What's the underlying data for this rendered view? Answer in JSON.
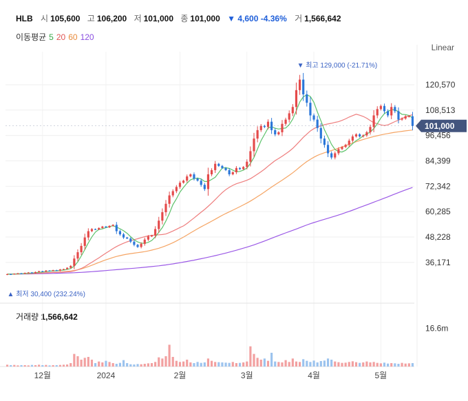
{
  "header": {
    "symbol": "HLB",
    "open_label": "시",
    "open": "105,600",
    "high_label": "고",
    "high": "106,200",
    "low_label": "저",
    "low": "101,000",
    "close_label": "종",
    "close": "101,000",
    "change": "▼ 4,600 -4.36%",
    "volume_label": "거",
    "volume": "1,566,642"
  },
  "ma_legend": {
    "label": "이동평균",
    "p5": "5",
    "p20": "20",
    "p60": "60",
    "p120": "120"
  },
  "scale_button": "Linear",
  "volume_panel": {
    "title": "거래량",
    "value": "1,566,642",
    "axis_label": "16.6m"
  },
  "colors": {
    "up": "#e44a4a",
    "down": "#2b77d9",
    "ma5": "#5cc26a",
    "ma20": "#ee7d7d",
    "ma60": "#f5a463",
    "ma120": "#9b59e6",
    "price_tag": "#43557e"
  },
  "chart_data": {
    "type": "candlestick",
    "price_ticks": [
      36171,
      48228,
      60285,
      72342,
      84399,
      96456,
      108513,
      120570
    ],
    "price_tick_labels": [
      "36,171",
      "48,228",
      "60,285",
      "72,342",
      "84,399",
      "96,456",
      "108,513",
      "120,570"
    ],
    "ylim": [
      24000,
      133000
    ],
    "x_labels": [
      "12월",
      "2024",
      "2월",
      "3월",
      "4월",
      "5월"
    ],
    "x_label_index": [
      10,
      28,
      49,
      68,
      87,
      106
    ],
    "current_price": 101000,
    "current_price_label": "101,000",
    "max_annotation": "최고 129,000 (-21.71%)",
    "min_annotation": "최저 30,400 (232.24%)",
    "max_index": 83,
    "min_index": 0,
    "closes": [
      30600,
      30500,
      30800,
      31000,
      30900,
      31200,
      31400,
      31100,
      31600,
      32000,
      31800,
      32300,
      32100,
      32500,
      32200,
      32800,
      33000,
      33600,
      34500,
      38000,
      41000,
      44000,
      48000,
      51000,
      52000,
      51800,
      52500,
      53200,
      52800,
      53500,
      54000,
      51000,
      49500,
      48000,
      47500,
      46000,
      44500,
      43500,
      45000,
      47000,
      48500,
      49000,
      52000,
      56000,
      60000,
      64000,
      68000,
      70000,
      72000,
      74000,
      75000,
      77000,
      78000,
      76000,
      75000,
      73000,
      71000,
      78000,
      80000,
      83000,
      82000,
      81000,
      80000,
      78000,
      79000,
      81000,
      80500,
      81500,
      84000,
      89000,
      95000,
      99000,
      101000,
      100500,
      103000,
      99000,
      97000,
      98000,
      102000,
      104000,
      107000,
      110000,
      118000,
      123000,
      116000,
      112000,
      106000,
      104000,
      100000,
      95000,
      92000,
      88000,
      86000,
      88000,
      90000,
      91000,
      92000,
      94000,
      96000,
      97000,
      96000,
      96500,
      98000,
      100500,
      106000,
      109000,
      110500,
      108000,
      106000,
      110000,
      108000,
      104000,
      104500,
      105600,
      105600,
      101000
    ],
    "ma5": [
      30600,
      30550,
      30633,
      30725,
      30760,
      30880,
      30960,
      31120,
      31240,
      31460,
      31580,
      31760,
      31960,
      32140,
      32180,
      32380,
      32520,
      32820,
      33220,
      34380,
      36400,
      39220,
      42220,
      45400,
      48300,
      50560,
      51820,
      52100,
      52660,
      53160,
      53600,
      52900,
      52160,
      51200,
      50000,
      48400,
      46900,
      45900,
      45300,
      45200,
      45700,
      46600,
      48300,
      50500,
      52700,
      55800,
      59400,
      63600,
      66400,
      69600,
      71800,
      73800,
      75400,
      76000,
      76200,
      75800,
      74600,
      74600,
      75600,
      76600,
      78800,
      81000,
      81200,
      80800,
      80000,
      79200,
      79400,
      80000,
      81000,
      83200,
      86000,
      90000,
      94000,
      97000,
      100000,
      100600,
      99900,
      99500,
      99800,
      100000,
      101600,
      104200,
      108200,
      112400,
      114800,
      115800,
      115000,
      112200,
      107600,
      103400,
      99200,
      95800,
      92200,
      89800,
      88800,
      88600,
      89400,
      91000,
      92600,
      94000,
      95000,
      96300,
      97200,
      98100,
      99700,
      102000,
      104800,
      106800,
      107900,
      108700,
      108700,
      107700,
      106500,
      106400,
      106000,
      104800
    ],
    "ma20": [
      30600,
      30550,
      30633,
      30725,
      30760,
      30833,
      30914,
      30938,
      31000,
      31100,
      31164,
      31250,
      31315,
      31386,
      31427,
      31500,
      31576,
      31678,
      31805,
      32115,
      32635,
      33295,
      34155,
      35180,
      36245,
      37275,
      38340,
      39450,
      40560,
      41640,
      42755,
      43690,
      44525,
      45245,
      45935,
      46495,
      46970,
      47395,
      47920,
      48370,
      48755,
      49005,
      49180,
      49280,
      49405,
      49655,
      50330,
      51080,
      51885,
      52725,
      53500,
      54650,
      55975,
      57300,
      58650,
      60000,
      61325,
      62800,
      64350,
      66000,
      67700,
      69300,
      70725,
      71825,
      72775,
      73525,
      74050,
      74600,
      75200,
      75950,
      77000,
      78100,
      79250,
      80475,
      81875,
      83225,
      84525,
      85525,
      86625,
      87750,
      88950,
      90325,
      92025,
      93775,
      95575,
      97100,
      98600,
      99725,
      100525,
      101050,
      101575,
      101925,
      102250,
      102675,
      103025,
      103625,
      104375,
      105200,
      105900,
      106550,
      106100,
      105500,
      104650,
      103525,
      102525,
      102025,
      101500,
      101200,
      101500,
      102250,
      103050,
      103750,
      104600,
      105250,
      105825,
      106325
    ],
    "ma60": [
      30600,
      30600,
      30630,
      30670,
      30710,
      30760,
      30820,
      30880,
      30950,
      31030,
      31110,
      31200,
      31300,
      31400,
      31510,
      31620,
      31740,
      31880,
      32050,
      32310,
      32650,
      33070,
      33590,
      34180,
      34830,
      35480,
      36140,
      36790,
      37390,
      37960,
      38500,
      38980,
      39400,
      39760,
      40070,
      40340,
      40570,
      40780,
      41010,
      41290,
      41620,
      41990,
      42420,
      42900,
      43440,
      44050,
      44740,
      45500,
      46350,
      47260,
      48200,
      49180,
      50190,
      51180,
      52140,
      53060,
      53940,
      54830,
      55740,
      56670,
      57610,
      58520,
      59390,
      60200,
      61000,
      61810,
      62620,
      63460,
      64350,
      65300,
      66320,
      67390,
      68500,
      69620,
      70800,
      71950,
      73060,
      74140,
      75240,
      76360,
      77520,
      78740,
      80080,
      81490,
      82820,
      84060,
      85150,
      86130,
      86970,
      87660,
      88260,
      88790,
      89300,
      89850,
      90420,
      91010,
      91630,
      92270,
      92900,
      93500,
      94060,
      94580,
      95060,
      95510,
      95940,
      96350,
      96730,
      97080,
      97390,
      97690,
      97970,
      98220,
      98450,
      98670,
      98870,
      99050
    ],
    "ma120": [
      30600,
      30580,
      30590,
      30610,
      30630,
      30660,
      30690,
      30720,
      30750,
      30790,
      30830,
      30870,
      30910,
      30950,
      30990,
      31040,
      31090,
      31140,
      31200,
      31270,
      31350,
      31440,
      31540,
      31650,
      31770,
      31900,
      32030,
      32160,
      32290,
      32430,
      32570,
      32710,
      32850,
      32990,
      33130,
      33270,
      33410,
      33550,
      33700,
      33850,
      34010,
      34180,
      34360,
      34550,
      34760,
      34980,
      35220,
      35470,
      35740,
      36020,
      36310,
      36610,
      36920,
      37240,
      37570,
      37910,
      38260,
      38620,
      38990,
      39370,
      39770,
      40180,
      40600,
      41040,
      41490,
      41950,
      42420,
      42910,
      43420,
      43950,
      44500,
      45080,
      45690,
      46320,
      46970,
      47630,
      48290,
      48940,
      49570,
      50180,
      50780,
      51390,
      52020,
      52680,
      53330,
      53950,
      54540,
      55100,
      55630,
      56140,
      56640,
      57140,
      57640,
      58150,
      58680,
      59230,
      59800,
      60390,
      61000,
      61620,
      62250,
      62880,
      63510,
      64140,
      64770,
      65400,
      66030,
      66670,
      67320,
      67980,
      68640,
      69300,
      69950,
      70580,
      71190,
      71770
    ],
    "volumes_m": [
      0.8,
      0.6,
      0.7,
      0.5,
      0.6,
      0.6,
      0.5,
      0.7,
      0.6,
      0.8,
      0.6,
      0.7,
      0.5,
      0.6,
      0.6,
      0.7,
      0.8,
      0.9,
      1.5,
      5.5,
      4.5,
      3.0,
      3.8,
      4.2,
      3.0,
      1.5,
      2.2,
      1.8,
      2.5,
      2.0,
      1.5,
      1.2,
      1.6,
      2.8,
      1.5,
      1.0,
      0.9,
      1.1,
      1.0,
      1.2,
      1.4,
      1.5,
      2.0,
      4.0,
      3.5,
      4.5,
      9.5,
      4.2,
      2.5,
      2.0,
      2.2,
      3.0,
      1.8,
      1.5,
      2.0,
      1.6,
      1.8,
      3.5,
      2.5,
      2.0,
      1.9,
      1.8,
      1.7,
      1.6,
      2.0,
      1.5,
      1.6,
      1.8,
      2.2,
      8.8,
      5.5,
      3.8,
      3.0,
      3.5,
      2.5,
      6.0,
      2.2,
      2.0,
      1.8,
      2.8,
      2.0,
      3.5,
      2.2,
      2.0,
      3.2,
      2.5,
      2.0,
      2.6,
      1.8,
      2.4,
      2.6,
      3.5,
      3.0,
      2.2,
      1.9,
      1.6,
      1.7,
      2.0,
      2.3,
      1.9,
      1.6,
      1.8,
      2.2,
      1.8,
      2.0,
      1.6,
      1.4,
      1.7,
      1.3,
      1.5,
      1.4,
      1.2,
      1.6,
      1.3,
      1.4,
      1.5
    ]
  }
}
